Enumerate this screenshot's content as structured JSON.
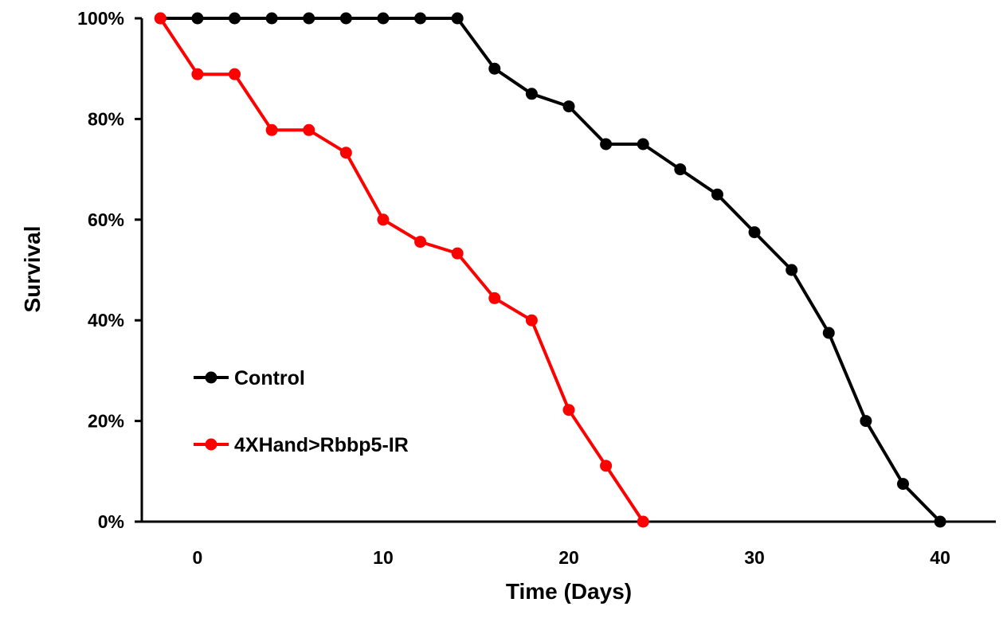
{
  "chart_data": {
    "type": "line",
    "xlabel": "Time (Days)",
    "ylabel": "Survival",
    "xlim": [
      -3,
      43
    ],
    "ylim": [
      0,
      1
    ],
    "xticks": [
      0,
      10,
      20,
      30,
      40
    ],
    "yticks": [
      0,
      0.2,
      0.4,
      0.6,
      0.8,
      1.0
    ],
    "ytick_labels": [
      "0%",
      "20%",
      "40%",
      "60%",
      "80%",
      "100%"
    ],
    "grid": false,
    "legend_position": "center-left",
    "series": [
      {
        "name": "Control",
        "color": "#000000",
        "x": [
          -2,
          0,
          2,
          4,
          6,
          8,
          10,
          12,
          14,
          16,
          18,
          20,
          22,
          24,
          26,
          28,
          30,
          32,
          34,
          36,
          38,
          40
        ],
        "y": [
          1.0,
          1.0,
          1.0,
          1.0,
          1.0,
          1.0,
          1.0,
          1.0,
          1.0,
          0.9,
          0.85,
          0.825,
          0.75,
          0.75,
          0.7,
          0.65,
          0.575,
          0.5,
          0.375,
          0.2,
          0.075,
          0.0
        ]
      },
      {
        "name": "4XHand>Rbbp5-IR",
        "color": "#ff0000",
        "x": [
          -2,
          0,
          2,
          4,
          6,
          8,
          10,
          12,
          14,
          16,
          18,
          20,
          22,
          24
        ],
        "y": [
          1.0,
          0.889,
          0.889,
          0.778,
          0.778,
          0.733,
          0.6,
          0.556,
          0.533,
          0.444,
          0.4,
          0.222,
          0.111,
          0.0
        ]
      }
    ]
  }
}
